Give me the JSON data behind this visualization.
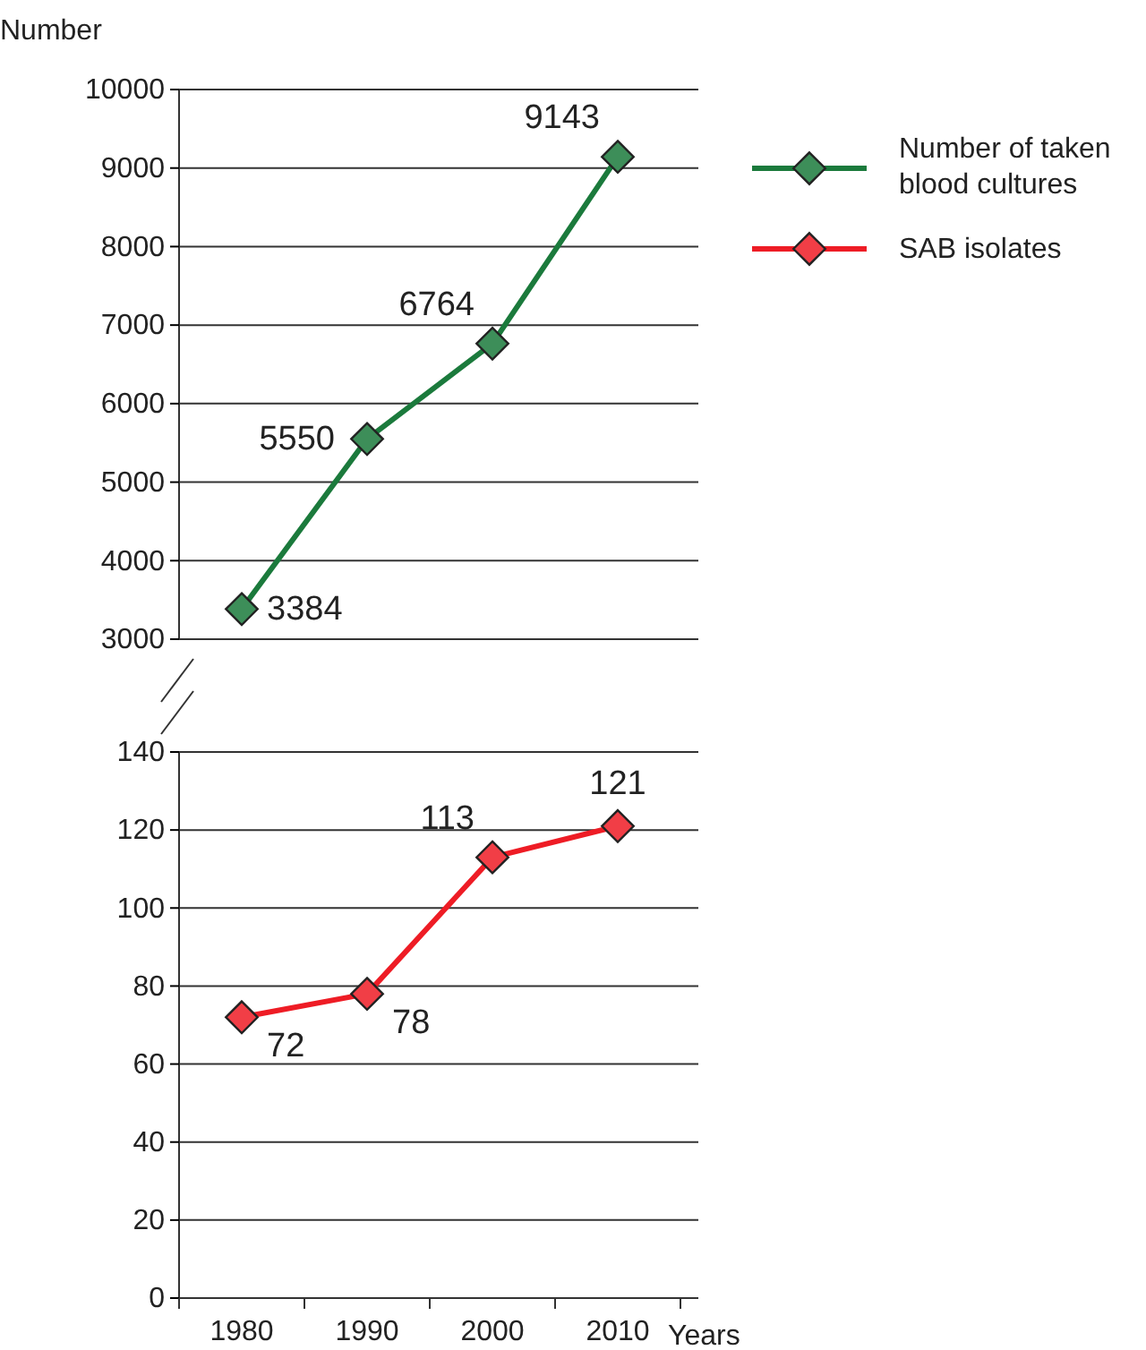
{
  "chart_data": [
    {
      "type": "line",
      "ylabel": "Number",
      "categories": [
        "1980",
        "1990",
        "2000",
        "2010"
      ],
      "ylim": [
        3000,
        10000
      ],
      "yticks": [
        3000,
        4000,
        5000,
        6000,
        7000,
        8000,
        9000,
        10000
      ],
      "tick_labels": "y",
      "grid": "y",
      "legend": "top right",
      "marker": "diamond",
      "data_labels": true,
      "series": [
        {
          "name": "Number of taken blood cultures",
          "color": "#1b7a3c",
          "values": [
            3384,
            5550,
            6764,
            9143
          ]
        }
      ]
    },
    {
      "type": "line",
      "xlabel": "Years",
      "categories": [
        "1980",
        "1990",
        "2000",
        "2010"
      ],
      "ylim": [
        0,
        140
      ],
      "yticks": [
        0,
        20,
        40,
        60,
        80,
        100,
        120,
        140
      ],
      "grid": "y",
      "legend": "top right",
      "marker": "diamond",
      "data_labels": true,
      "series": [
        {
          "name": "SAB isolates",
          "color": "#ee1c25",
          "values": [
            72,
            78,
            113,
            121
          ]
        }
      ]
    }
  ]
}
